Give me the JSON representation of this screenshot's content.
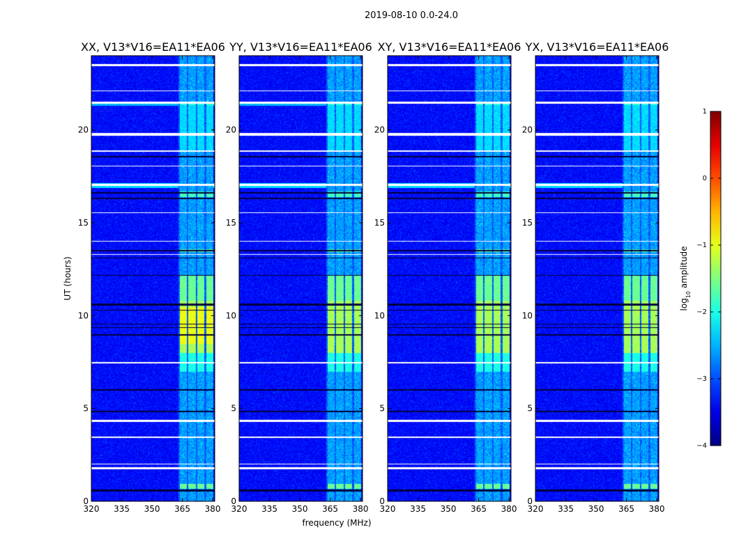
{
  "figure_title": "2019-08-10 0.0-24.0",
  "chart_data": {
    "type": "heatmap",
    "suptitle": "2019-08-10 0.0-24.0",
    "xlabel": "frequency (MHz)",
    "ylabel": "UT (hours)",
    "xlim": [
      320,
      381
    ],
    "ylim": [
      0,
      24
    ],
    "xticks": [
      320,
      335,
      350,
      365,
      380
    ],
    "yticks": [
      0,
      5,
      10,
      15,
      20
    ],
    "panels": [
      {
        "title": "XX, V13*V16=EA11*EA06",
        "polarization": "XX"
      },
      {
        "title": "YY, V13*V16=EA11*EA06",
        "polarization": "YY"
      },
      {
        "title": "XY, V13*V16=EA11*EA06",
        "polarization": "XY"
      },
      {
        "title": "YX, V13*V16=EA11*EA06",
        "polarization": "YX"
      }
    ],
    "colorbar": {
      "label_prefix": "log",
      "label_sub": "10",
      "label_suffix": " amplitude",
      "vmin": -4,
      "vmax": 1,
      "ticks": [
        1,
        0,
        -1,
        -2,
        -3,
        -4
      ],
      "tick_labels": [
        "1",
        "0",
        "−1",
        "−2",
        "−3",
        "−4"
      ],
      "colormap": "jet"
    },
    "rfi_band_mhz": [
      363,
      380
    ],
    "rfi_channels_mhz": [
      [
        363.5,
        367
      ],
      [
        367.8,
        371.5
      ],
      [
        372.3,
        375.8
      ],
      [
        376.6,
        380
      ]
    ],
    "flagged_gaps_hours": [
      [
        23.45,
        23.55
      ],
      [
        22.1,
        22.15
      ],
      [
        21.45,
        21.55
      ],
      [
        19.7,
        19.85
      ],
      [
        18.85,
        18.9
      ],
      [
        18.05,
        18.1
      ],
      [
        17.0,
        17.1
      ],
      [
        15.55,
        15.6
      ],
      [
        14.0,
        14.05
      ],
      [
        13.3,
        13.35
      ],
      [
        7.45,
        7.5
      ],
      [
        4.3,
        4.4
      ],
      [
        3.45,
        3.5
      ],
      [
        2.0,
        2.05
      ],
      [
        1.75,
        1.85
      ]
    ],
    "dark_lines_hours": [
      [
        18.55,
        18.6
      ],
      [
        16.6,
        16.65
      ],
      [
        16.3,
        16.35
      ],
      [
        13.5,
        13.55
      ],
      [
        13.1,
        13.15
      ],
      [
        12.15,
        12.2
      ],
      [
        10.55,
        10.65
      ],
      [
        10.3,
        10.35
      ],
      [
        9.55,
        9.6
      ],
      [
        9.35,
        9.4
      ],
      [
        8.95,
        9.0
      ],
      [
        6.0,
        6.05
      ],
      [
        4.8,
        4.9
      ],
      [
        0.55,
        0.65
      ]
    ],
    "bright_events": [
      {
        "hours": [
          10.8,
          12.2
        ],
        "level": -1.6
      },
      {
        "hours": [
          8.0,
          10.8
        ],
        "level": -1.3
      },
      {
        "hours": [
          7.0,
          8.0
        ],
        "level": -2.0
      },
      {
        "hours": [
          13.45,
          13.6
        ],
        "level": -1.6
      },
      {
        "hours": [
          16.4,
          16.7
        ],
        "level": -1.8
      },
      {
        "hours": [
          0.7,
          0.95
        ],
        "level": -1.6
      },
      {
        "hours": [
          18.9,
          21.4
        ],
        "level": -2.3
      },
      {
        "hours": [
          21.35,
          21.5
        ],
        "level": -1.9
      }
    ]
  }
}
